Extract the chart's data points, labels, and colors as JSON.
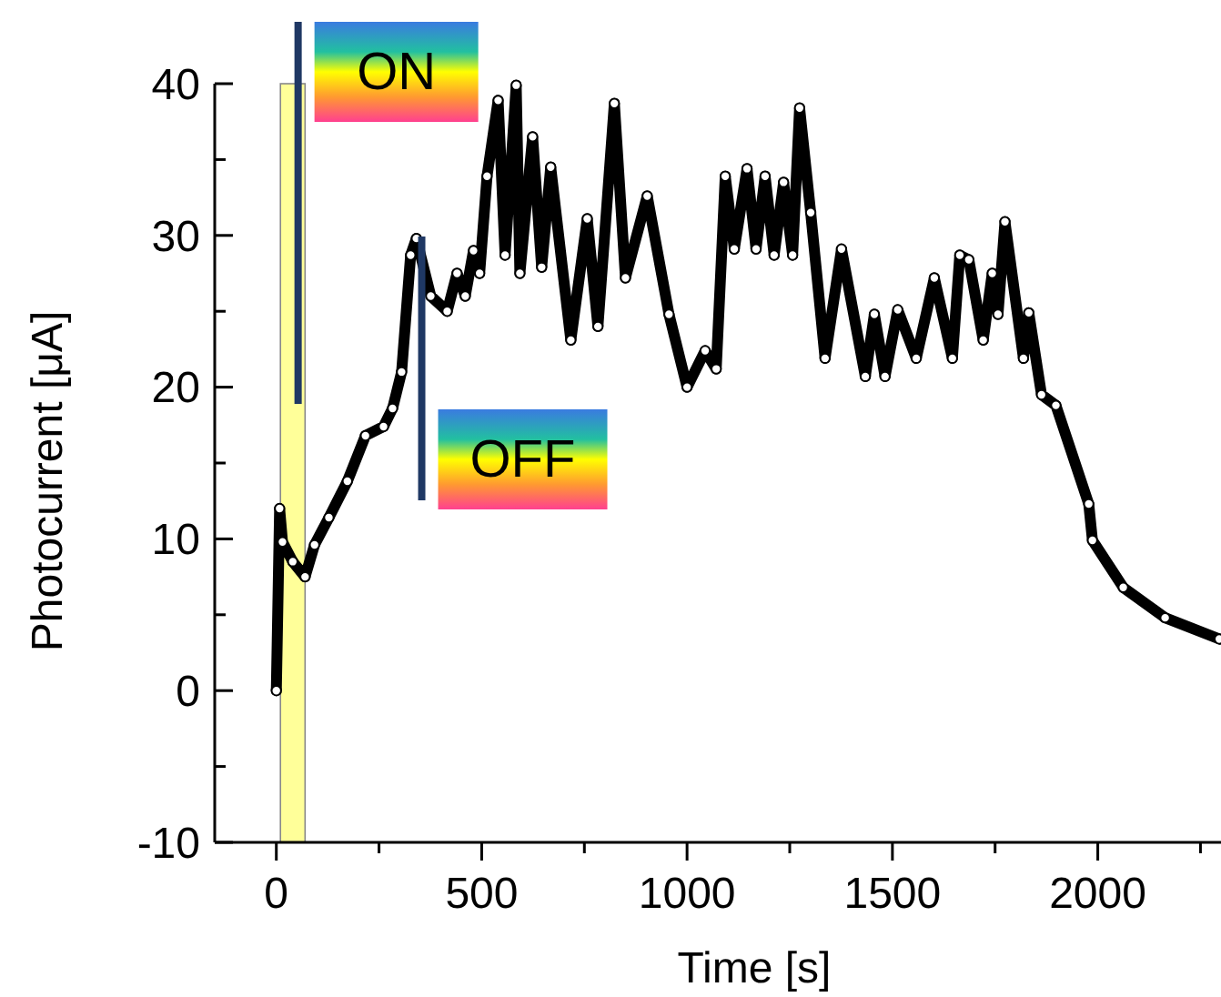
{
  "chart_data": {
    "type": "line",
    "xlabel": "Time [s]",
    "ylabel": "Photocurrent [μA]",
    "xlim": [
      -150,
      2300
    ],
    "ylim": [
      -10,
      40
    ],
    "xticks": [
      0,
      {
        "value": 250,
        "label": null
      },
      500,
      {
        "value": 750,
        "label": null
      },
      1000,
      {
        "value": 1250,
        "label": null
      },
      1500,
      {
        "value": 1750,
        "label": null
      },
      2000,
      {
        "value": 2250,
        "label": null
      }
    ],
    "yticks": [
      -10,
      {
        "value": -5,
        "label": null
      },
      0,
      {
        "value": 5,
        "label": null
      },
      10,
      {
        "value": 15,
        "label": null
      },
      20,
      {
        "value": 25,
        "label": null
      },
      30,
      {
        "value": 35,
        "label": null
      },
      40
    ],
    "grid": false,
    "marker": "circle",
    "line_style": "solid",
    "bands": [
      {
        "axis": "x",
        "from": 10,
        "to": 70,
        "color": "#ffff99"
      }
    ],
    "ref_lines": [
      {
        "axis": "x",
        "value": 53,
        "label": "ON",
        "color": "#1f3864"
      },
      {
        "axis": "x",
        "value": 354,
        "label": "OFF",
        "color": "#1f3864"
      }
    ],
    "series": [
      {
        "color": "#000000",
        "x": [
          0,
          8,
          15,
          40,
          70,
          93,
          128,
          173,
          217,
          261,
          283,
          305,
          327,
          341,
          376,
          416,
          440,
          460,
          480,
          495,
          513,
          540,
          557,
          584,
          593,
          624,
          646,
          668,
          717,
          757,
          783,
          823,
          850,
          903,
          956,
          1000,
          1044,
          1071,
          1093,
          1115,
          1146,
          1168,
          1190,
          1212,
          1235,
          1257,
          1274,
          1301,
          1336,
          1376,
          1434,
          1456,
          1482,
          1513,
          1558,
          1602,
          1646,
          1664,
          1686,
          1721,
          1743,
          1757,
          1774,
          1819,
          1832,
          1863,
          1898,
          1978,
          1987,
          2062,
          2164,
          2296
        ],
        "values": [
          0,
          12,
          9.8,
          8.5,
          7.5,
          9.6,
          11.4,
          13.8,
          16.8,
          17.4,
          18.6,
          21,
          28.7,
          29.8,
          26,
          25,
          27.5,
          26,
          29,
          27.5,
          33.9,
          38.9,
          28.7,
          39.9,
          27.5,
          36.5,
          27.9,
          34.5,
          23.1,
          31.1,
          24,
          38.7,
          27.2,
          32.6,
          24.8,
          20,
          22.4,
          21.2,
          33.9,
          29.1,
          34.4,
          29.1,
          33.9,
          28.7,
          33.5,
          28.7,
          38.4,
          31.5,
          21.9,
          29.1,
          20.7,
          24.8,
          20.7,
          25.1,
          21.9,
          27.2,
          21.9,
          28.7,
          28.4,
          23.1,
          27.5,
          24.8,
          30.9,
          21.9,
          24.9,
          19.5,
          18.8,
          12.3,
          9.9,
          6.8,
          4.8,
          3.4
        ]
      }
    ]
  }
}
